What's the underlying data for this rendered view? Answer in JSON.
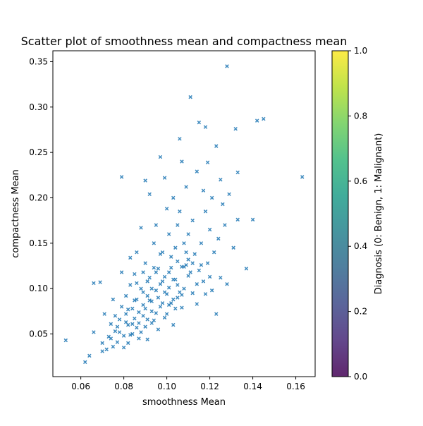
{
  "chart_data": {
    "type": "scatter",
    "title": "Scatter plot of smoothness mean and compactness mean",
    "xlabel": "smoothness Mean",
    "ylabel": "compactness Mean",
    "xlim": [
      0.047,
      0.169
    ],
    "ylim": [
      0.003,
      0.362
    ],
    "xticks": [
      0.06,
      0.08,
      0.1,
      0.12,
      0.14,
      0.16
    ],
    "xtick_labels": [
      "0.06",
      "0.08",
      "0.10",
      "0.12",
      "0.14",
      "0.16"
    ],
    "yticks": [
      0.05,
      0.1,
      0.15,
      0.2,
      0.25,
      0.3,
      0.35
    ],
    "ytick_labels": [
      "0.05",
      "0.10",
      "0.15",
      "0.20",
      "0.25",
      "0.30",
      "0.35"
    ],
    "marker": "x",
    "marker_color": "#1f77b4",
    "grid": false,
    "colorbar": {
      "label": "Diagnosis (0: Benign, 1: Malignant)",
      "range": [
        0.0,
        1.0
      ],
      "ticks": [
        0.0,
        0.2,
        0.4,
        0.6,
        0.8,
        1.0
      ],
      "tick_labels": [
        "0.0",
        "0.2",
        "0.4",
        "0.6",
        "0.8",
        "1.0"
      ],
      "colormap": "viridis",
      "colors": [
        "#440154",
        "#482878",
        "#3e4a89",
        "#31688e",
        "#26828e",
        "#1f9e89",
        "#35b779",
        "#6ece58",
        "#b5de2b",
        "#fde725"
      ]
    },
    "series": [
      {
        "points": [
          [
            0.053,
            0.043
          ],
          [
            0.062,
            0.019
          ],
          [
            0.064,
            0.026
          ],
          [
            0.066,
            0.052
          ],
          [
            0.066,
            0.106
          ],
          [
            0.069,
            0.107
          ],
          [
            0.07,
            0.04
          ],
          [
            0.07,
            0.031
          ],
          [
            0.071,
            0.072
          ],
          [
            0.073,
            0.047
          ],
          [
            0.074,
            0.061
          ],
          [
            0.075,
            0.088
          ],
          [
            0.075,
            0.036
          ],
          [
            0.076,
            0.053
          ],
          [
            0.077,
            0.041
          ],
          [
            0.078,
            0.066
          ],
          [
            0.079,
            0.223
          ],
          [
            0.079,
            0.118
          ],
          [
            0.08,
            0.048
          ],
          [
            0.081,
            0.072
          ],
          [
            0.081,
            0.092
          ],
          [
            0.082,
            0.06
          ],
          [
            0.082,
            0.04
          ],
          [
            0.083,
            0.104
          ],
          [
            0.083,
            0.134
          ],
          [
            0.084,
            0.078
          ],
          [
            0.084,
            0.05
          ],
          [
            0.085,
            0.067
          ],
          [
            0.085,
            0.116
          ],
          [
            0.086,
            0.088
          ],
          [
            0.086,
            0.14
          ],
          [
            0.087,
            0.062
          ],
          [
            0.087,
            0.045
          ],
          [
            0.088,
            0.167
          ],
          [
            0.088,
            0.1
          ],
          [
            0.089,
            0.07
          ],
          [
            0.089,
            0.082
          ],
          [
            0.09,
            0.219
          ],
          [
            0.09,
            0.128
          ],
          [
            0.09,
            0.058
          ],
          [
            0.091,
            0.092
          ],
          [
            0.091,
            0.044
          ],
          [
            0.092,
            0.204
          ],
          [
            0.092,
            0.112
          ],
          [
            0.093,
            0.075
          ],
          [
            0.093,
            0.086
          ],
          [
            0.094,
            0.15
          ],
          [
            0.094,
            0.065
          ],
          [
            0.095,
            0.17
          ],
          [
            0.095,
            0.098
          ],
          [
            0.096,
            0.122
          ],
          [
            0.096,
            0.055
          ],
          [
            0.097,
            0.08
          ],
          [
            0.097,
            0.245
          ],
          [
            0.098,
            0.108
          ],
          [
            0.098,
            0.14
          ],
          [
            0.099,
            0.222
          ],
          [
            0.099,
            0.068
          ],
          [
            0.1,
            0.094
          ],
          [
            0.1,
            0.188
          ],
          [
            0.101,
            0.118
          ],
          [
            0.101,
            0.16
          ],
          [
            0.102,
            0.084
          ],
          [
            0.102,
            0.135
          ],
          [
            0.103,
            0.2
          ],
          [
            0.103,
            0.06
          ],
          [
            0.104,
            0.11
          ],
          [
            0.104,
            0.145
          ],
          [
            0.105,
            0.17
          ],
          [
            0.105,
            0.09
          ],
          [
            0.106,
            0.265
          ],
          [
            0.106,
            0.185
          ],
          [
            0.107,
            0.124
          ],
          [
            0.107,
            0.24
          ],
          [
            0.108,
            0.15
          ],
          [
            0.108,
            0.1
          ],
          [
            0.109,
            0.212
          ],
          [
            0.11,
            0.132
          ],
          [
            0.11,
            0.16
          ],
          [
            0.111,
            0.311
          ],
          [
            0.111,
            0.118
          ],
          [
            0.112,
            0.095
          ],
          [
            0.112,
            0.175
          ],
          [
            0.113,
            0.138
          ],
          [
            0.114,
            0.229
          ],
          [
            0.114,
            0.083
          ],
          [
            0.115,
            0.283
          ],
          [
            0.115,
            0.12
          ],
          [
            0.116,
            0.15
          ],
          [
            0.117,
            0.208
          ],
          [
            0.117,
            0.108
          ],
          [
            0.118,
            0.278
          ],
          [
            0.118,
            0.185
          ],
          [
            0.119,
            0.128
          ],
          [
            0.119,
            0.239
          ],
          [
            0.12,
            0.165
          ],
          [
            0.121,
            0.098
          ],
          [
            0.121,
            0.2
          ],
          [
            0.122,
            0.14
          ],
          [
            0.123,
            0.072
          ],
          [
            0.123,
            0.257
          ],
          [
            0.124,
            0.155
          ],
          [
            0.125,
            0.22
          ],
          [
            0.125,
            0.112
          ],
          [
            0.126,
            0.193
          ],
          [
            0.127,
            0.17
          ],
          [
            0.128,
            0.345
          ],
          [
            0.128,
            0.105
          ],
          [
            0.129,
            0.204
          ],
          [
            0.131,
            0.145
          ],
          [
            0.132,
            0.276
          ],
          [
            0.133,
            0.228
          ],
          [
            0.133,
            0.176
          ],
          [
            0.137,
            0.122
          ],
          [
            0.14,
            0.176
          ],
          [
            0.142,
            0.285
          ],
          [
            0.145,
            0.287
          ],
          [
            0.163,
            0.223
          ],
          [
            0.078,
            0.052
          ],
          [
            0.08,
            0.035
          ],
          [
            0.082,
            0.077
          ],
          [
            0.084,
            0.061
          ],
          [
            0.086,
            0.057
          ],
          [
            0.086,
            0.106
          ],
          [
            0.088,
            0.052
          ],
          [
            0.089,
            0.118
          ],
          [
            0.09,
            0.078
          ],
          [
            0.091,
            0.066
          ],
          [
            0.092,
            0.087
          ],
          [
            0.093,
            0.1
          ],
          [
            0.094,
            0.123
          ],
          [
            0.095,
            0.073
          ],
          [
            0.096,
            0.09
          ],
          [
            0.097,
            0.105
          ],
          [
            0.098,
            0.084
          ],
          [
            0.099,
            0.113
          ],
          [
            0.1,
            0.072
          ],
          [
            0.101,
            0.101
          ],
          [
            0.102,
            0.123
          ],
          [
            0.103,
            0.088
          ],
          [
            0.104,
            0.078
          ],
          [
            0.105,
            0.13
          ],
          [
            0.106,
            0.096
          ],
          [
            0.107,
            0.079
          ],
          [
            0.108,
            0.124
          ],
          [
            0.109,
            0.14
          ],
          [
            0.11,
            0.114
          ],
          [
            0.112,
            0.128
          ],
          [
            0.114,
            0.105
          ],
          [
            0.116,
            0.126
          ],
          [
            0.118,
            0.094
          ],
          [
            0.12,
            0.113
          ],
          [
            0.072,
            0.033
          ],
          [
            0.074,
            0.045
          ],
          [
            0.076,
            0.07
          ],
          [
            0.077,
            0.058
          ],
          [
            0.079,
            0.08
          ],
          [
            0.081,
            0.063
          ],
          [
            0.083,
            0.049
          ],
          [
            0.085,
            0.087
          ],
          [
            0.087,
            0.074
          ],
          [
            0.089,
            0.096
          ],
          [
            0.091,
            0.108
          ],
          [
            0.093,
            0.062
          ],
          [
            0.095,
            0.118
          ],
          [
            0.097,
            0.138
          ],
          [
            0.099,
            0.096
          ],
          [
            0.101,
            0.082
          ],
          [
            0.103,
            0.11
          ],
          [
            0.105,
            0.104
          ],
          [
            0.107,
            0.093
          ],
          [
            0.109,
            0.126
          ]
        ]
      }
    ]
  }
}
